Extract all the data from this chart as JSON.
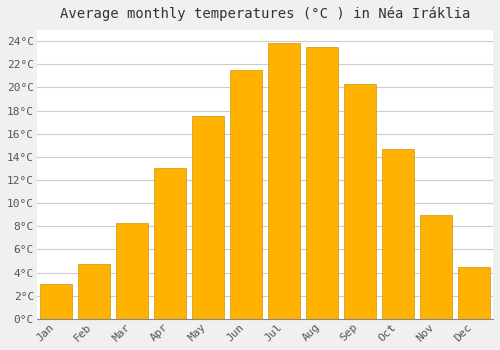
{
  "title": "Average monthly temperatures (°C ) in Néa Iráklia",
  "months": [
    "Jan",
    "Feb",
    "Mar",
    "Apr",
    "May",
    "Jun",
    "Jul",
    "Aug",
    "Sep",
    "Oct",
    "Nov",
    "Dec"
  ],
  "values": [
    3.0,
    4.7,
    8.3,
    13.0,
    17.5,
    21.5,
    23.8,
    23.5,
    20.3,
    14.7,
    9.0,
    4.5
  ],
  "bar_color_top": "#FFAA00",
  "bar_color_bottom": "#FFD060",
  "bar_edge_color": "#BBAA00",
  "plot_bg_color": "#FFFFFF",
  "fig_bg_color": "#F0F0F0",
  "grid_color": "#CCCCCC",
  "ylim": [
    0,
    25
  ],
  "yticks": [
    0,
    2,
    4,
    6,
    8,
    10,
    12,
    14,
    16,
    18,
    20,
    22,
    24
  ],
  "ylabel_suffix": "°C",
  "title_fontsize": 10,
  "tick_fontsize": 8,
  "bar_width": 0.85
}
